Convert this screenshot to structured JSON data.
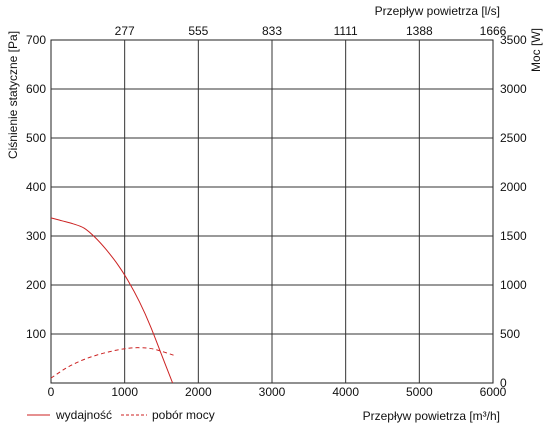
{
  "chart_data": {
    "type": "line",
    "top_axis_label": "Przepływ powietrza [l/s]",
    "top_ticks": [
      "277",
      "555",
      "833",
      "1111",
      "1388",
      "1666"
    ],
    "xlabel": "Przepływ powietrza [m³/h]",
    "ylabel_left": "Ciśnienie statyczne [Pa]",
    "ylabel_right": "Moc [W]",
    "xlim": [
      0,
      6000
    ],
    "ylim_left": [
      0,
      700
    ],
    "ylim_right": [
      0,
      3500
    ],
    "x_ticks": [
      0,
      1000,
      2000,
      3000,
      4000,
      5000,
      6000
    ],
    "y_ticks_left": [
      100,
      200,
      300,
      400,
      500,
      600,
      700
    ],
    "y_ticks_right": [
      0,
      500,
      1000,
      1500,
      2000,
      2500,
      3000,
      3500
    ],
    "grid": true,
    "legend_position": "bottom-left",
    "series": [
      {
        "name": "wydajność",
        "axis": "left",
        "style": "solid",
        "color": "#cc2222",
        "x": [
          0,
          150,
          300,
          450,
          600,
          750,
          900,
          1050,
          1200,
          1350,
          1500,
          1650
        ],
        "y": [
          337,
          331,
          325,
          316,
          297,
          272,
          243,
          208,
          166,
          116,
          58,
          0
        ]
      },
      {
        "name": "pobór mocy",
        "axis": "right",
        "style": "dashed",
        "color": "#cc2222",
        "x": [
          0,
          200,
          400,
          600,
          800,
          1000,
          1200,
          1400,
          1700
        ],
        "y": [
          50,
          150,
          225,
          280,
          320,
          350,
          360,
          345,
          275
        ]
      }
    ]
  }
}
